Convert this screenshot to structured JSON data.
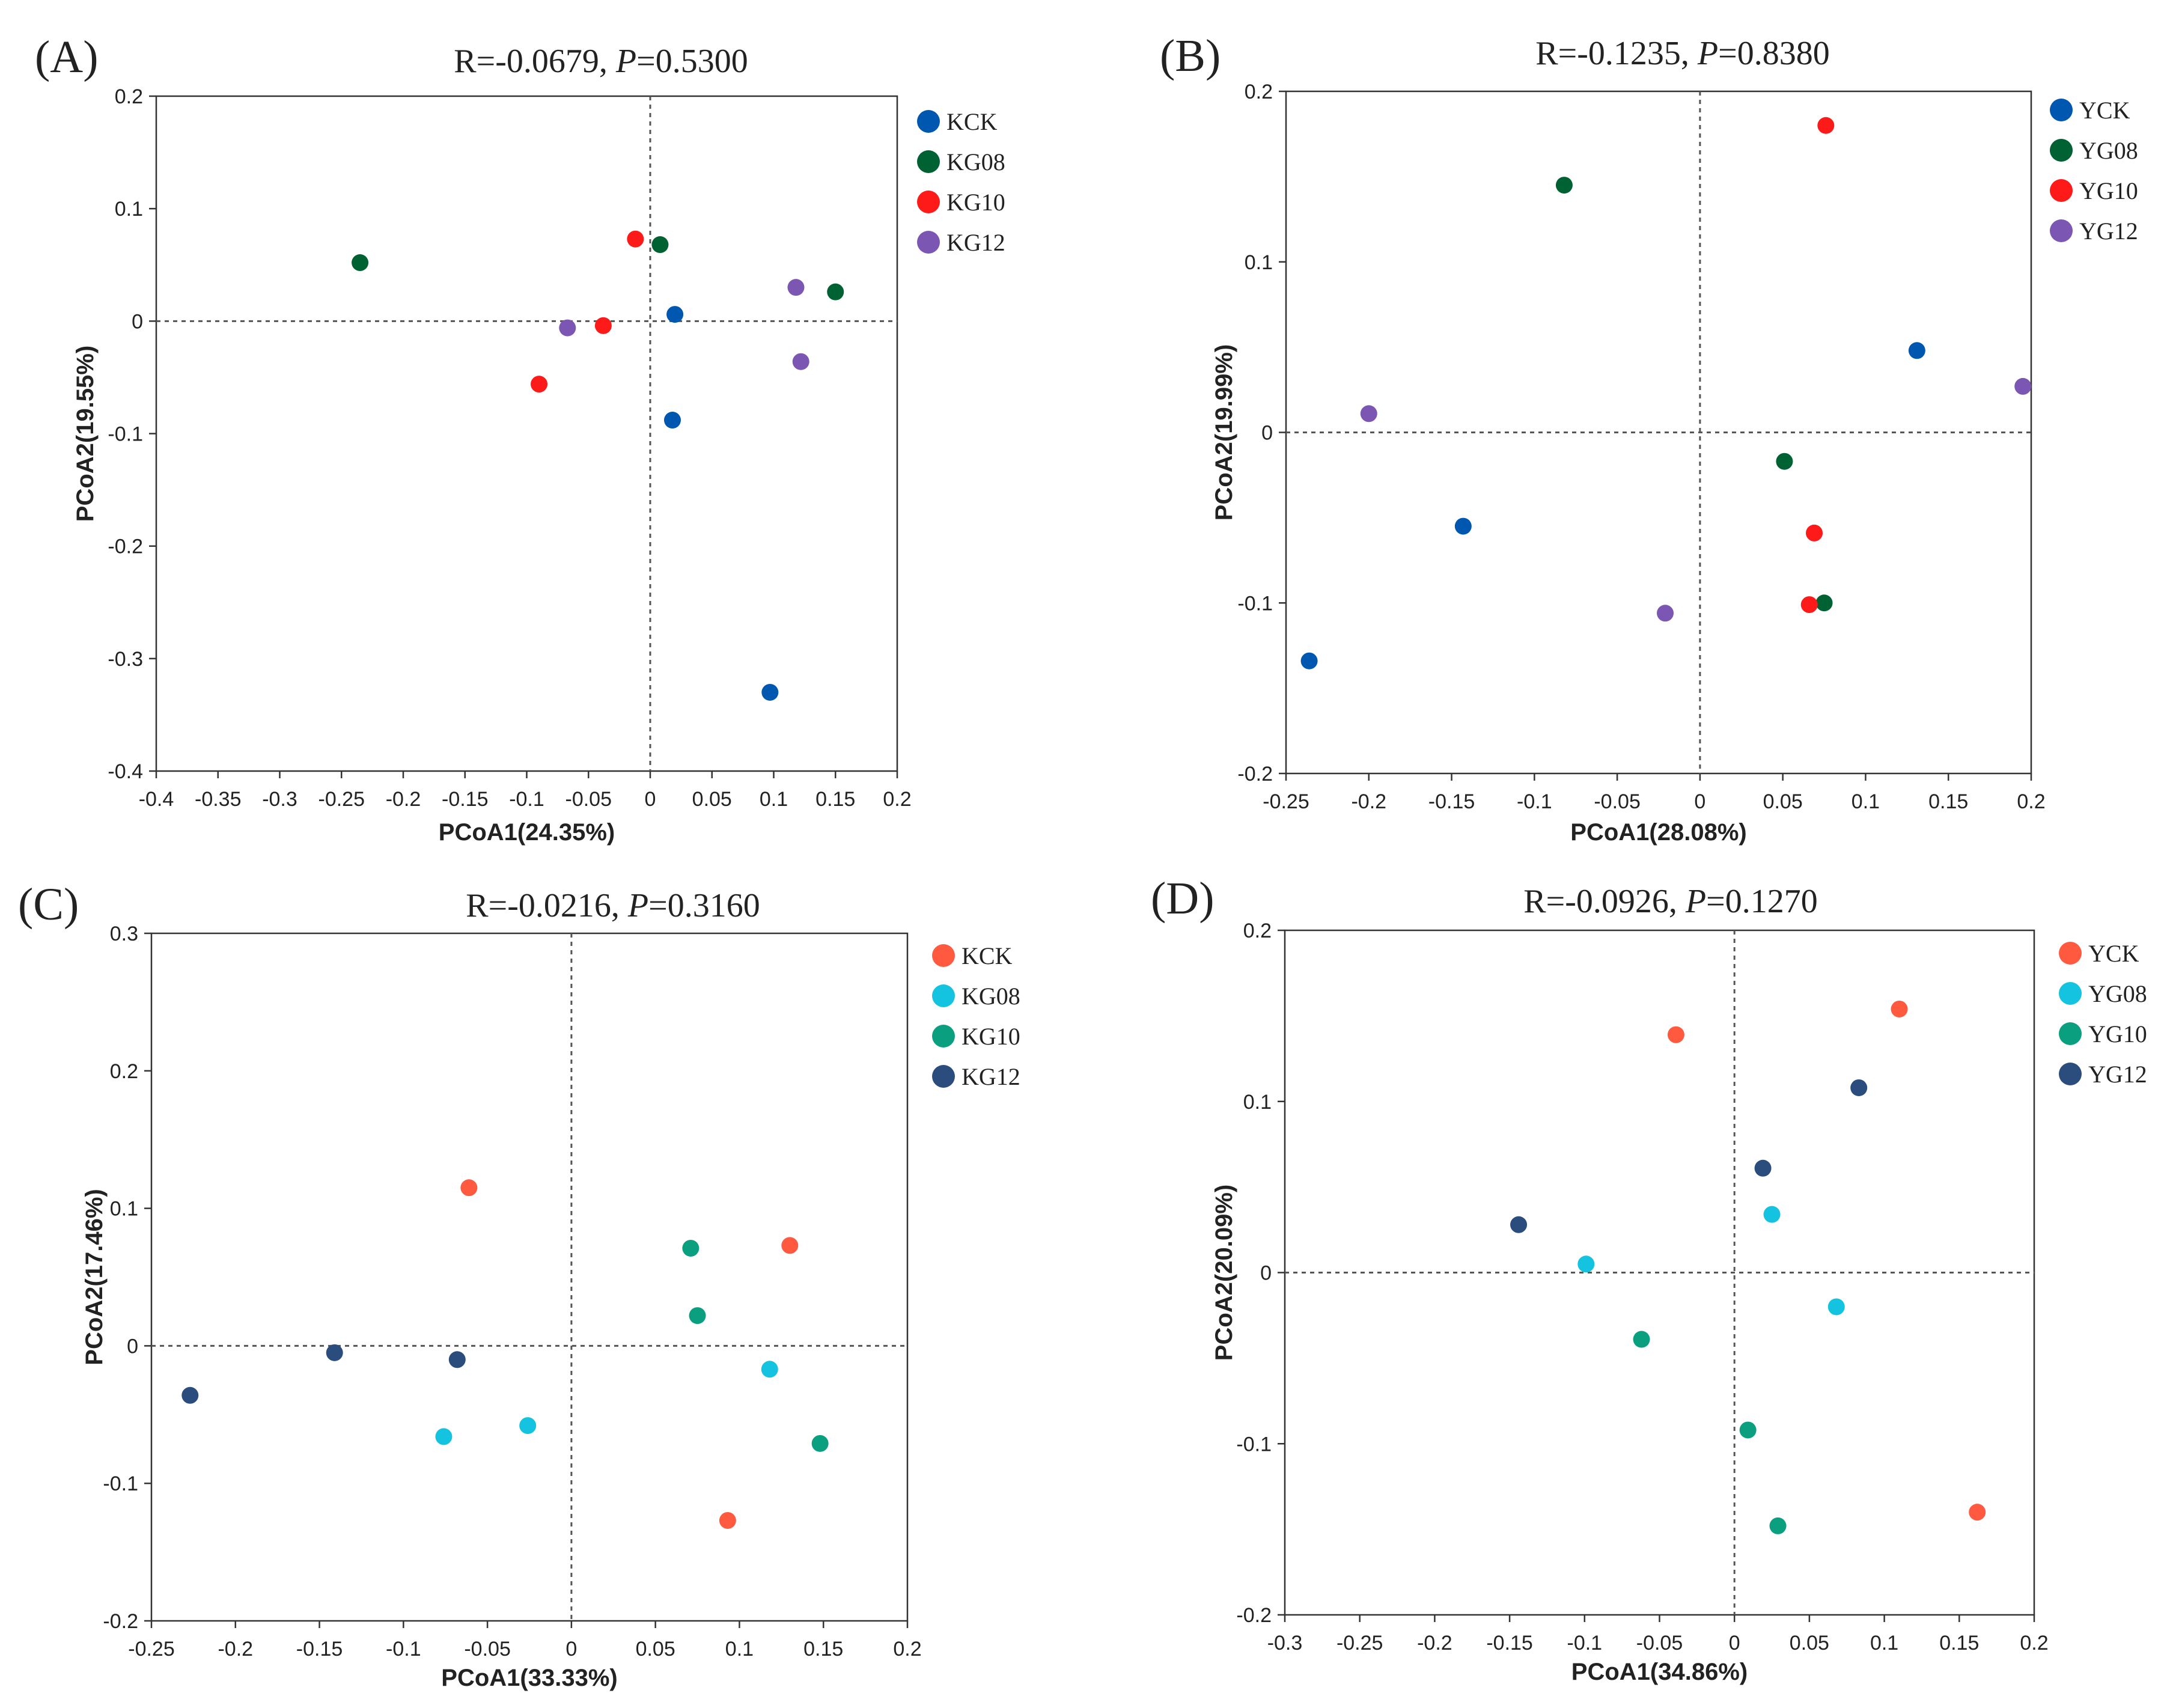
{
  "chart_data": [
    {
      "type": "scatter",
      "panel_label": "(A)",
      "title_parts": [
        "R=-0.0679, ",
        "P",
        "=0.5300"
      ],
      "xlabel": "PCoA1(24.35%)",
      "ylabel": "PCoA2(19.55%)",
      "xlim": [
        -0.4,
        0.2
      ],
      "ylim": [
        -0.4,
        0.2
      ],
      "xticks": [
        -0.4,
        -0.35,
        -0.3,
        -0.25,
        -0.2,
        -0.15,
        -0.1,
        -0.05,
        0,
        0.05,
        0.1,
        0.15,
        0.2
      ],
      "yticks": [
        -0.4,
        -0.3,
        -0.2,
        -0.1,
        0,
        0.1,
        0.2
      ],
      "xtick_labels": [
        "-0.4",
        "-0.35",
        "-0.3",
        "-0.25",
        "-0.2",
        "-0.15",
        "-0.1",
        "-0.05",
        "0",
        "0.05",
        "0.1",
        "0.15",
        "0.2"
      ],
      "ytick_labels": [
        "-0.4",
        "-0.3",
        "-0.2",
        "-0.1",
        "0",
        "0.1",
        "0.2"
      ],
      "legend_position": "right",
      "series": [
        {
          "name": "KCK",
          "color": "#0057b0",
          "points": [
            [
              0.02,
              0.006
            ],
            [
              0.018,
              -0.088
            ],
            [
              0.097,
              -0.33
            ]
          ]
        },
        {
          "name": "KG08",
          "color": "#006233",
          "points": [
            [
              -0.235,
              0.052
            ],
            [
              0.008,
              0.068
            ],
            [
              0.15,
              0.026
            ]
          ]
        },
        {
          "name": "KG10",
          "color": "#ff1a1a",
          "points": [
            [
              -0.012,
              0.073
            ],
            [
              -0.038,
              -0.004
            ],
            [
              -0.09,
              -0.056
            ]
          ]
        },
        {
          "name": "KG12",
          "color": "#7b56b3",
          "points": [
            [
              -0.067,
              -0.006
            ],
            [
              0.118,
              0.03
            ],
            [
              0.122,
              -0.036
            ]
          ]
        }
      ]
    },
    {
      "type": "scatter",
      "panel_label": "(B)",
      "title_parts": [
        "R=-0.1235, ",
        "P",
        "=0.8380"
      ],
      "xlabel": "PCoA1(28.08%)",
      "ylabel": "PCoA2(19.99%)",
      "xlim": [
        -0.25,
        0.2
      ],
      "ylim": [
        -0.2,
        0.2
      ],
      "xticks": [
        -0.25,
        -0.2,
        -0.15,
        -0.1,
        -0.05,
        0,
        0.05,
        0.1,
        0.15,
        0.2
      ],
      "yticks": [
        -0.2,
        -0.1,
        0,
        0.1,
        0.2
      ],
      "xtick_labels": [
        "-0.25",
        "-0.2",
        "-0.15",
        "-0.1",
        "-0.05",
        "0",
        "0.05",
        "0.1",
        "0.15",
        "0.2"
      ],
      "ytick_labels": [
        "-0.2",
        "-0.1",
        "0",
        "0.1",
        "0.2"
      ],
      "legend_position": "right",
      "series": [
        {
          "name": "YCK",
          "color": "#0057b0",
          "points": [
            [
              0.131,
              0.048
            ],
            [
              -0.143,
              -0.055
            ],
            [
              -0.236,
              -0.134
            ]
          ]
        },
        {
          "name": "YG08",
          "color": "#006233",
          "points": [
            [
              -0.082,
              0.145
            ],
            [
              0.051,
              -0.017
            ],
            [
              0.075,
              -0.1
            ]
          ]
        },
        {
          "name": "YG10",
          "color": "#ff1a1a",
          "points": [
            [
              0.076,
              0.18
            ],
            [
              0.069,
              -0.059
            ],
            [
              0.066,
              -0.101
            ]
          ]
        },
        {
          "name": "YG12",
          "color": "#7b56b3",
          "points": [
            [
              -0.2,
              0.011
            ],
            [
              0.195,
              0.027
            ],
            [
              -0.021,
              -0.106
            ]
          ]
        }
      ]
    },
    {
      "type": "scatter",
      "panel_label": "(C)",
      "title_parts": [
        "R=-0.0216, ",
        "P",
        "=0.3160"
      ],
      "xlabel": "PCoA1(33.33%)",
      "ylabel": "PCoA2(17.46%)",
      "xlim": [
        -0.25,
        0.2
      ],
      "ylim": [
        -0.2,
        0.3
      ],
      "xticks": [
        -0.25,
        -0.2,
        -0.15,
        -0.1,
        -0.05,
        0,
        0.05,
        0.1,
        0.15,
        0.2
      ],
      "yticks": [
        -0.2,
        -0.1,
        0,
        0.1,
        0.2,
        0.3
      ],
      "xtick_labels": [
        "-0.25",
        "-0.2",
        "-0.15",
        "-0.1",
        "-0.05",
        "0",
        "0.05",
        "0.1",
        "0.15",
        "0.2"
      ],
      "ytick_labels": [
        "-0.2",
        "-0.1",
        "0",
        "0.1",
        "0.2",
        "0.3"
      ],
      "legend_position": "right",
      "series": [
        {
          "name": "KCK",
          "color": "#ff5a40",
          "points": [
            [
              -0.061,
              0.115
            ],
            [
              0.13,
              0.073
            ],
            [
              0.093,
              -0.127
            ]
          ]
        },
        {
          "name": "KG08",
          "color": "#14c3e0",
          "points": [
            [
              0.118,
              -0.017
            ],
            [
              -0.026,
              -0.058
            ],
            [
              -0.076,
              -0.066
            ]
          ]
        },
        {
          "name": "KG10",
          "color": "#0aa07f",
          "points": [
            [
              0.071,
              0.071
            ],
            [
              0.075,
              0.022
            ],
            [
              0.148,
              -0.071
            ]
          ]
        },
        {
          "name": "KG12",
          "color": "#2b4d7e",
          "points": [
            [
              -0.141,
              -0.005
            ],
            [
              -0.068,
              -0.01
            ],
            [
              -0.227,
              -0.036
            ]
          ]
        }
      ]
    },
    {
      "type": "scatter",
      "panel_label": "(D)",
      "title_parts": [
        "R=-0.0926, ",
        "P",
        "=0.1270"
      ],
      "xlabel": "PCoA1(34.86%)",
      "ylabel": "PCoA2(20.09%)",
      "xlim": [
        -0.3,
        0.2
      ],
      "ylim": [
        -0.2,
        0.2
      ],
      "xticks": [
        -0.3,
        -0.25,
        -0.2,
        -0.15,
        -0.1,
        -0.05,
        0,
        0.05,
        0.1,
        0.15,
        0.2
      ],
      "yticks": [
        -0.2,
        -0.1,
        0,
        0.1,
        0.2
      ],
      "xtick_labels": [
        "-0.3",
        "-0.25",
        "-0.2",
        "-0.15",
        "-0.1",
        "-0.05",
        "0",
        "0.05",
        "0.1",
        "0.15",
        "0.2"
      ],
      "ytick_labels": [
        "-0.2",
        "-0.1",
        "0",
        "0.1",
        "0.2"
      ],
      "legend_position": "right",
      "series": [
        {
          "name": "YCK",
          "color": "#ff5a40",
          "points": [
            [
              -0.039,
              0.139
            ],
            [
              0.11,
              0.154
            ],
            [
              0.162,
              -0.14
            ]
          ]
        },
        {
          "name": "YG08",
          "color": "#14c3e0",
          "points": [
            [
              0.025,
              0.034
            ],
            [
              -0.099,
              0.005
            ],
            [
              0.068,
              -0.02
            ]
          ]
        },
        {
          "name": "YG10",
          "color": "#0aa07f",
          "points": [
            [
              -0.062,
              -0.039
            ],
            [
              0.009,
              -0.092
            ],
            [
              0.029,
              -0.148
            ]
          ]
        },
        {
          "name": "YG12",
          "color": "#2b4d7e",
          "points": [
            [
              0.083,
              0.108
            ],
            [
              0.019,
              0.061
            ],
            [
              -0.144,
              0.028
            ]
          ]
        }
      ]
    }
  ]
}
